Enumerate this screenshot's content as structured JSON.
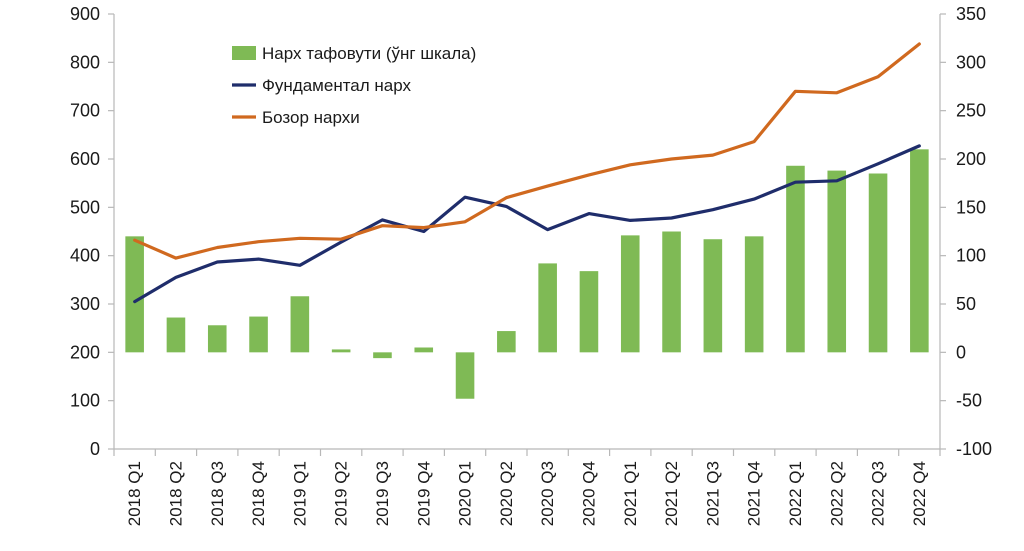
{
  "chart_data": {
    "type": "bar",
    "categories": [
      "2018 Q1",
      "2018 Q2",
      "2018 Q3",
      "2018 Q4",
      "2019 Q1",
      "2019 Q2",
      "2019 Q3",
      "2019 Q4",
      "2020 Q1",
      "2020 Q2",
      "2020 Q3",
      "2020 Q4",
      "2021 Q1",
      "2021 Q2",
      "2021 Q3",
      "2021 Q4",
      "2022 Q1",
      "2022 Q2",
      "2022 Q3",
      "2022 Q4"
    ],
    "series": [
      {
        "name": "Нарх тафовути (ўнг шкала)",
        "type": "bar",
        "axis": "right",
        "color": "#7fba55",
        "values": [
          120,
          36,
          28,
          37,
          58,
          3,
          -6,
          5,
          -48,
          22,
          92,
          84,
          121,
          125,
          117,
          120,
          193,
          188,
          185,
          210
        ]
      },
      {
        "name": "Фундаментал нарх",
        "type": "line",
        "axis": "left",
        "color": "#1f2d6b",
        "values": [
          305,
          355,
          387,
          393,
          380,
          428,
          474,
          450,
          521,
          502,
          454,
          487,
          473,
          478,
          495,
          517,
          552,
          555,
          590,
          627
        ]
      },
      {
        "name": "Бозор нархи",
        "type": "line",
        "axis": "left",
        "color": "#d0691f",
        "values": [
          432,
          395,
          417,
          429,
          436,
          434,
          462,
          458,
          470,
          520,
          544,
          567,
          588,
          600,
          608,
          636,
          740,
          737,
          770,
          838
        ]
      }
    ],
    "y_left": {
      "min": 0,
      "max": 900,
      "ticks": [
        "0",
        "100",
        "200",
        "300",
        "400",
        "500",
        "600",
        "700",
        "800",
        "900"
      ]
    },
    "y_right": {
      "min": -100,
      "max": 350,
      "ticks": [
        "-100",
        "-50",
        "0",
        "50",
        "100",
        "150",
        "200",
        "250",
        "300",
        "350"
      ]
    },
    "grid": false,
    "legend": "top-left"
  }
}
